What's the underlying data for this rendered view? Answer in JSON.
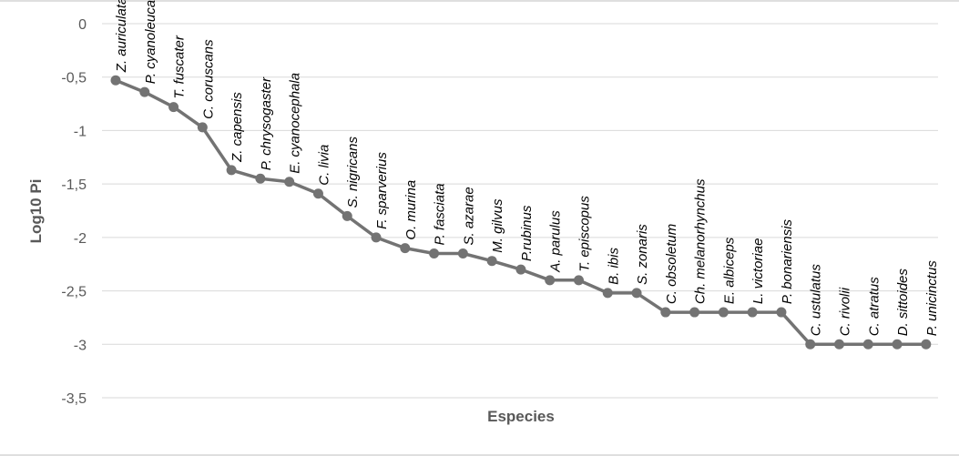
{
  "chart_data": {
    "type": "line",
    "title": "",
    "xlabel": "Especies",
    "ylabel": "Log10 Pi",
    "ylim": [
      -3.5,
      0
    ],
    "yticks": [
      0,
      -0.5,
      -1,
      -1.5,
      -2,
      -2.5,
      -3,
      -3.5
    ],
    "ytick_labels": [
      "0",
      "-0,5",
      "-1",
      "-1,5",
      "-2",
      "-2,5",
      "-3",
      "-3,5"
    ],
    "grid": true,
    "legend": "none",
    "color": "#737373",
    "categories": [
      "Z. auriculata",
      "P. cyanoleuca",
      "T. fuscater",
      "C. coruscans",
      "Z. capensis",
      "P. chrysogaster",
      "E. cyanocephala",
      "C. livia",
      "S. nigricans",
      "F. sparverius",
      "O. murina",
      "P. fasciata",
      "S. azarae",
      "M. gilvus",
      "P.rubinus",
      "A. parulus",
      "T. episcopus",
      "B. ibis",
      "S. zonaris",
      "C. obsoletum",
      "Ch. melanorhynchus",
      "E. albiceps",
      "L. victoriae",
      "P. bonariensis",
      "C. ustulatus",
      "C. rivolii",
      "C. atratus",
      "D. sittoides",
      "P. unicinctus"
    ],
    "values": [
      -0.53,
      -0.64,
      -0.78,
      -0.97,
      -1.37,
      -1.45,
      -1.48,
      -1.59,
      -1.8,
      -2.0,
      -2.1,
      -2.15,
      -2.15,
      -2.22,
      -2.3,
      -2.4,
      -2.4,
      -2.52,
      -2.52,
      -2.7,
      -2.7,
      -2.7,
      -2.7,
      -2.7,
      -3.0,
      -3.0,
      -3.0,
      -3.0,
      -3.0
    ]
  }
}
